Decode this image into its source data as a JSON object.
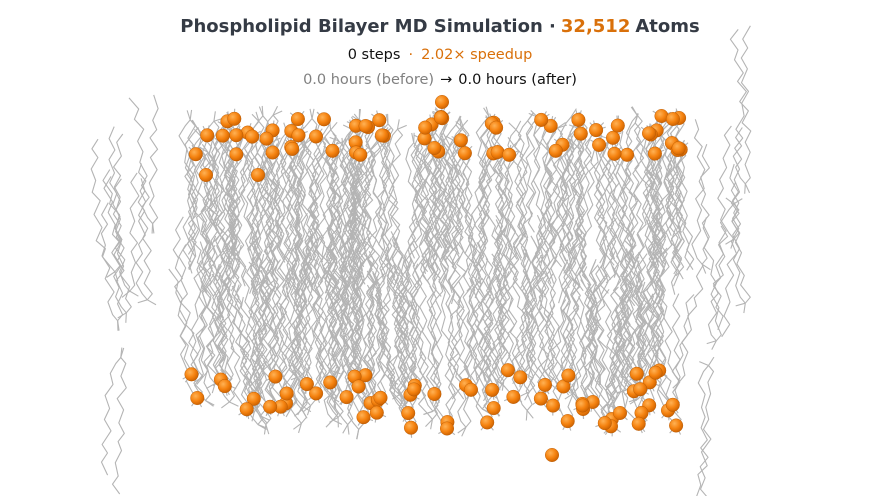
{
  "header": {
    "title": {
      "prefix": "Phospholipid Bilayer MD Simulation ·",
      "atoms": "32,512",
      "suffix": "Atoms"
    },
    "stats": {
      "steps": "0 steps",
      "separator": "·",
      "speedup": "2.02× speedup"
    },
    "timing": {
      "before": "0.0 hours (before)",
      "arrow": "→",
      "after": "0.0 hours (after)"
    }
  }
}
